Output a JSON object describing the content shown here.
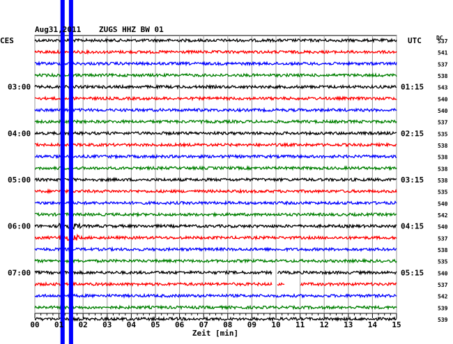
{
  "header": {
    "date": "Aug31,2011",
    "station": "ZUGS HHZ BW 01",
    "left_tz": "CES",
    "right_tz": "UTC",
    "dc_label": "DC"
  },
  "chart_data": {
    "type": "line",
    "title": "Aug31,2011   ZUGS HHZ BW 01",
    "xlabel": "Zeit [min]",
    "xlim": [
      0,
      15
    ],
    "x_ticks": [
      "00",
      "01",
      "02",
      "03",
      "04",
      "05",
      "06",
      "07",
      "08",
      "09",
      "10",
      "11",
      "12",
      "13",
      "14",
      "15"
    ],
    "left_time_labels": [
      "03:00",
      "04:00",
      "05:00",
      "06:00",
      "07:00"
    ],
    "right_time_labels": [
      "01:15",
      "02:15",
      "03:15",
      "04:15",
      "05:15"
    ],
    "time_label_rows": [
      4,
      8,
      12,
      16,
      20
    ],
    "trace_colors": [
      "#000000",
      "#ff0000",
      "#0000ff",
      "#008000"
    ],
    "dc_offsets": [
      537,
      541,
      537,
      538,
      543,
      540,
      540,
      537,
      535,
      538,
      538,
      538,
      538,
      535,
      540,
      542,
      540,
      537,
      538,
      535,
      540,
      537,
      542,
      539,
      539
    ],
    "gaps": [
      {
        "row": 20,
        "from_min": 9.85,
        "to_min": 10.05
      },
      {
        "row": 21,
        "from_min": 9.85,
        "to_min": 10.05
      },
      {
        "row": 21,
        "from_min": 10.35,
        "to_min": 11.0
      }
    ],
    "events": [
      {
        "minute": 1.15,
        "color": "#0000ff",
        "description": "vertical blue bar"
      },
      {
        "minute": 1.5,
        "color": "#0000ff",
        "description": "vertical blue bar"
      }
    ],
    "grid": true
  }
}
